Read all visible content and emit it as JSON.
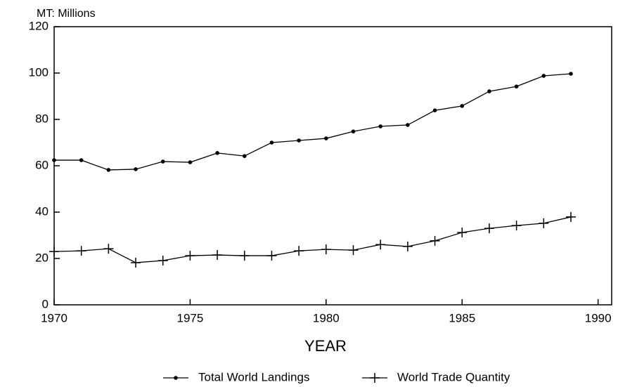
{
  "chart_data": {
    "type": "line",
    "y_label": "MT: Millions",
    "x_label": "YEAR",
    "x": [
      1970,
      1971,
      1972,
      1973,
      1974,
      1975,
      1976,
      1977,
      1978,
      1979,
      1980,
      1981,
      1982,
      1983,
      1984,
      1985,
      1986,
      1987,
      1988,
      1989
    ],
    "series": [
      {
        "name": "Total World Landings",
        "color": "#000000",
        "marker": "dot",
        "values": [
          62.4,
          62.4,
          58.2,
          58.5,
          61.8,
          61.5,
          65.5,
          64.2,
          70.0,
          70.9,
          71.8,
          74.8,
          77.0,
          77.6,
          83.9,
          85.8,
          92.1,
          94.2,
          98.8,
          99.7
        ]
      },
      {
        "name": "World Trade Quantity",
        "color": "#000000",
        "marker": "plus",
        "values": [
          23.0,
          23.3,
          24.2,
          18.2,
          19.1,
          21.2,
          21.5,
          21.2,
          21.2,
          23.3,
          23.9,
          23.6,
          26.0,
          25.2,
          27.6,
          31.2,
          33.0,
          34.2,
          35.2,
          37.9
        ]
      }
    ],
    "xlim": [
      1970,
      1990.5
    ],
    "ylim": [
      0,
      120
    ],
    "xticks": [
      1970,
      1975,
      1980,
      1985,
      1990
    ],
    "yticks": [
      0,
      20,
      40,
      60,
      80,
      100,
      120
    ],
    "grid": false
  }
}
